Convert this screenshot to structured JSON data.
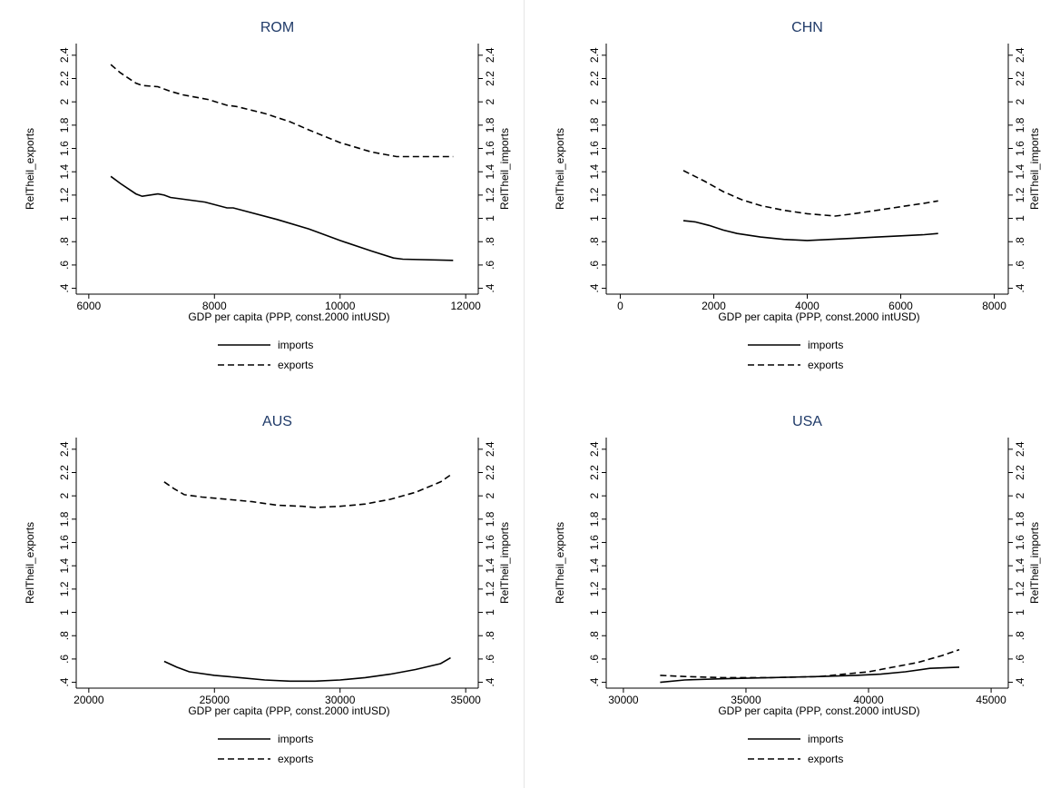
{
  "chart_data": [
    {
      "type": "line",
      "title": "ROM",
      "xlabel": "GDP per capita (PPP, const.2000 intUSD)",
      "ylabel_left": "RelTheil_exports",
      "ylabel_right": "RelTheil_imports",
      "xlim": [
        5800,
        12200
      ],
      "ylim": [
        0.35,
        2.5
      ],
      "xticks": [
        6000,
        8000,
        10000,
        12000
      ],
      "yticks": [
        0.4,
        0.6,
        0.8,
        1,
        1.2,
        1.4,
        1.6,
        1.8,
        2,
        2.2,
        2.4
      ],
      "ytick_labels": [
        ".4",
        ".6",
        ".8",
        "1",
        "1.2",
        "1.4",
        "1.6",
        "1.8",
        "2",
        "2.2",
        "2.4"
      ],
      "series": [
        {
          "name": "imports",
          "style": "solid",
          "x": [
            6350,
            6500,
            6750,
            6850,
            7100,
            7200,
            7300,
            7850,
            8200,
            8300,
            9000,
            9500,
            10000,
            10500,
            10850,
            11000,
            11800
          ],
          "y": [
            1.36,
            1.3,
            1.21,
            1.19,
            1.21,
            1.2,
            1.18,
            1.14,
            1.09,
            1.09,
            0.99,
            0.91,
            0.81,
            0.72,
            0.66,
            0.65,
            0.64
          ]
        },
        {
          "name": "exports",
          "style": "dashed",
          "x": [
            6350,
            6500,
            6750,
            6850,
            7100,
            7300,
            7500,
            7900,
            8200,
            8350,
            8800,
            9200,
            9500,
            10000,
            10500,
            10900,
            11000,
            11800
          ],
          "y": [
            2.32,
            2.25,
            2.16,
            2.14,
            2.13,
            2.09,
            2.06,
            2.02,
            1.97,
            1.96,
            1.9,
            1.83,
            1.76,
            1.65,
            1.57,
            1.53,
            1.53,
            1.53
          ]
        }
      ]
    },
    {
      "type": "line",
      "title": "CHN",
      "xlabel": "GDP per capita (PPP, const.2000 intUSD)",
      "ylabel_left": "RelTheil_exports",
      "ylabel_right": "RelTheil_imports",
      "xlim": [
        -300,
        8300
      ],
      "ylim": [
        0.35,
        2.5
      ],
      "xticks": [
        0,
        2000,
        4000,
        6000,
        8000
      ],
      "yticks": [
        0.4,
        0.6,
        0.8,
        1,
        1.2,
        1.4,
        1.6,
        1.8,
        2,
        2.2,
        2.4
      ],
      "ytick_labels": [
        ".4",
        ".6",
        ".8",
        "1",
        "1.2",
        "1.4",
        "1.6",
        "1.8",
        "2",
        "2.2",
        "2.4"
      ],
      "series": [
        {
          "name": "imports",
          "style": "solid",
          "x": [
            1350,
            1600,
            1900,
            2200,
            2500,
            3000,
            3500,
            4000,
            4500,
            5000,
            5500,
            6000,
            6500,
            6800
          ],
          "y": [
            0.98,
            0.97,
            0.94,
            0.9,
            0.87,
            0.84,
            0.82,
            0.81,
            0.82,
            0.83,
            0.84,
            0.85,
            0.86,
            0.87
          ]
        },
        {
          "name": "exports",
          "style": "dashed",
          "x": [
            1350,
            1800,
            2200,
            2600,
            3000,
            3500,
            4000,
            4600,
            5000,
            5500,
            6000,
            6500,
            6800
          ],
          "y": [
            1.41,
            1.32,
            1.23,
            1.16,
            1.11,
            1.07,
            1.04,
            1.02,
            1.04,
            1.07,
            1.1,
            1.13,
            1.15
          ]
        }
      ]
    },
    {
      "type": "line",
      "title": "AUS",
      "xlabel": "GDP per capita (PPP, const.2000 intUSD)",
      "ylabel_left": "RelTheil_exports",
      "ylabel_right": "RelTheil_imports",
      "xlim": [
        19500,
        35500
      ],
      "ylim": [
        0.35,
        2.5
      ],
      "xticks": [
        20000,
        25000,
        30000,
        35000
      ],
      "yticks": [
        0.4,
        0.6,
        0.8,
        1,
        1.2,
        1.4,
        1.6,
        1.8,
        2,
        2.2,
        2.4
      ],
      "ytick_labels": [
        ".4",
        ".6",
        ".8",
        "1",
        "1.2",
        "1.4",
        "1.6",
        "1.8",
        "2",
        "2.2",
        "2.4"
      ],
      "series": [
        {
          "name": "imports",
          "style": "solid",
          "x": [
            23000,
            23500,
            24000,
            25000,
            26000,
            27000,
            28000,
            29000,
            30000,
            31000,
            32000,
            33000,
            34000,
            34400
          ],
          "y": [
            0.58,
            0.53,
            0.49,
            0.46,
            0.44,
            0.42,
            0.41,
            0.41,
            0.42,
            0.44,
            0.47,
            0.51,
            0.56,
            0.61
          ]
        },
        {
          "name": "exports",
          "style": "dashed",
          "x": [
            23000,
            23400,
            23800,
            24500,
            25500,
            26500,
            27500,
            28500,
            29000,
            30000,
            31000,
            32000,
            33000,
            34000,
            34400
          ],
          "y": [
            2.12,
            2.06,
            2.01,
            1.99,
            1.97,
            1.95,
            1.92,
            1.91,
            1.9,
            1.91,
            1.93,
            1.97,
            2.03,
            2.12,
            2.18
          ]
        }
      ]
    },
    {
      "type": "line",
      "title": "USA",
      "xlabel": "GDP per capita (PPP, const.2000 intUSD)",
      "ylabel_left": "RelTheil_exports",
      "ylabel_right": "RelTheil_imports",
      "xlim": [
        29300,
        45700
      ],
      "ylim": [
        0.35,
        2.5
      ],
      "xticks": [
        30000,
        35000,
        40000,
        45000
      ],
      "yticks": [
        0.4,
        0.6,
        0.8,
        1,
        1.2,
        1.4,
        1.6,
        1.8,
        2,
        2.2,
        2.4
      ],
      "ytick_labels": [
        ".4",
        ".6",
        ".8",
        "1",
        "1.2",
        "1.4",
        "1.6",
        "1.8",
        "2",
        "2.2",
        "2.4"
      ],
      "series": [
        {
          "name": "imports",
          "style": "solid",
          "x": [
            31500,
            32500,
            34000,
            36000,
            38000,
            39500,
            40500,
            41500,
            42500,
            43700
          ],
          "y": [
            0.4,
            0.42,
            0.43,
            0.44,
            0.45,
            0.46,
            0.47,
            0.49,
            0.52,
            0.53
          ]
        },
        {
          "name": "exports",
          "style": "dashed",
          "x": [
            31500,
            32500,
            34000,
            36000,
            38000,
            39000,
            40000,
            41000,
            42000,
            43000,
            43700
          ],
          "y": [
            0.46,
            0.45,
            0.44,
            0.44,
            0.45,
            0.47,
            0.49,
            0.53,
            0.57,
            0.63,
            0.68
          ]
        }
      ]
    }
  ],
  "legend": {
    "imports_label": "imports",
    "exports_label": "exports"
  }
}
